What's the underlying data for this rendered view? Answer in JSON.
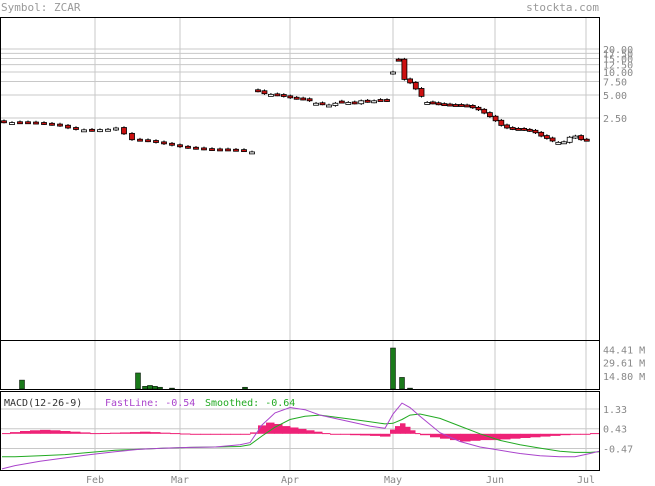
{
  "header": {
    "symbol": "Symbol: ZCAR",
    "brand": "stockta.com"
  },
  "chart_data": [
    {
      "type": "candlestick",
      "x_tick_labels": [
        "Feb",
        "Mar",
        "Apr",
        "May",
        "Jun",
        "Jul"
      ],
      "y_scale": "log",
      "y_tick_labels": [
        "20.00",
        "17.50",
        "15.00",
        "12.50",
        "10.00",
        "7.50",
        "5.00",
        "2.50"
      ],
      "y_tick_values": [
        20.0,
        17.5,
        15.0,
        12.5,
        10.0,
        7.5,
        5.0,
        2.5
      ],
      "grid": true,
      "series": [
        {
          "segment": "Jan-Mar",
          "close": [
            2.2,
            2.18,
            2.2,
            2.18,
            2.15,
            2.1,
            2.05,
            1.98,
            1.85,
            1.78,
            1.75,
            1.72,
            1.76,
            1.78,
            1.85,
            1.55,
            1.3,
            1.28,
            1.25,
            1.2,
            1.15,
            1.1,
            1.05,
            1.02,
            1.0,
            0.98,
            0.97,
            0.97,
            0.96,
            0.95,
            0.95,
            0.9
          ],
          "up": [
            false,
            true,
            false,
            false,
            false,
            false,
            false,
            false,
            false,
            false,
            true,
            false,
            true,
            true,
            true,
            false,
            false,
            false,
            false,
            false,
            false,
            false,
            false,
            false,
            false,
            false,
            false,
            false,
            false,
            false,
            false,
            true
          ]
        },
        {
          "segment": "Apr-May",
          "close": [
            5.6,
            5.2,
            5.1,
            5.0,
            4.8,
            4.6,
            4.5,
            4.4,
            4.2,
            3.9,
            3.8,
            3.7,
            3.9,
            4.1,
            4.0,
            3.9,
            4.2,
            4.1,
            4.2,
            4.3,
            4.2
          ],
          "up": [
            false,
            false,
            true,
            false,
            false,
            false,
            false,
            false,
            false,
            true,
            false,
            true,
            true,
            false,
            true,
            false,
            true,
            false,
            true,
            false,
            false
          ]
        },
        {
          "segment": "May-Jul",
          "close": [
            10.0,
            14.5,
            8.0,
            7.2,
            6.0,
            4.8,
            4.0,
            3.9,
            3.8,
            3.75,
            3.7,
            3.7,
            3.65,
            3.6,
            3.4,
            3.2,
            2.9,
            2.6,
            2.3,
            2.0,
            1.85,
            1.8,
            1.8,
            1.75,
            1.7,
            1.6,
            1.45,
            1.35,
            1.25,
            1.2,
            1.22,
            1.4,
            1.45,
            1.3,
            1.28
          ],
          "up": [
            true,
            false,
            false,
            false,
            false,
            false,
            true,
            false,
            false,
            false,
            false,
            false,
            false,
            false,
            false,
            false,
            false,
            false,
            false,
            false,
            false,
            false,
            false,
            false,
            false,
            false,
            false,
            false,
            false,
            true,
            true,
            true,
            true,
            false,
            false
          ]
        }
      ]
    },
    {
      "type": "bar",
      "name": "volume",
      "y_tick_labels": [
        "44.41 M",
        "29.61 M",
        "14.80 M"
      ],
      "y_tick_values": [
        44.41,
        29.61,
        14.8
      ],
      "ylim": [
        0,
        46
      ],
      "bars": [
        {
          "x": 22,
          "v": 10
        },
        {
          "x": 138,
          "v": 18
        },
        {
          "x": 145,
          "v": 3
        },
        {
          "x": 150,
          "v": 4
        },
        {
          "x": 155,
          "v": 3
        },
        {
          "x": 160,
          "v": 2
        },
        {
          "x": 172,
          "v": 1
        },
        {
          "x": 245,
          "v": 2
        },
        {
          "x": 393,
          "v": 46
        },
        {
          "x": 402,
          "v": 13
        },
        {
          "x": 410,
          "v": 1
        }
      ]
    },
    {
      "type": "line",
      "name": "MACD",
      "label": "MACD(12-26-9)",
      "fastline_label": "FastLine: -0.54",
      "smoothed_label": "Smoothed: -0.64",
      "y_tick_labels": [
        "1.33",
        "0.43",
        "-0.47"
      ],
      "y_tick_values": [
        1.33,
        0.43,
        -0.47
      ],
      "ylim": [
        -1.45,
        2.15
      ],
      "x": [
        2,
        15,
        40,
        65,
        90,
        115,
        140,
        165,
        190,
        215,
        240,
        250,
        262,
        275,
        290,
        305,
        320,
        345,
        370,
        385,
        393,
        402,
        410,
        420,
        440,
        460,
        480,
        500,
        520,
        540,
        560,
        575,
        590,
        599
      ],
      "fastline": [
        -1.4,
        -1.25,
        -1.05,
        -0.9,
        -0.75,
        -0.62,
        -0.5,
        -0.45,
        -0.42,
        -0.4,
        -0.3,
        -0.2,
        0.6,
        1.15,
        1.4,
        1.3,
        1.05,
        0.8,
        0.55,
        0.45,
        1.1,
        1.6,
        1.4,
        1.0,
        0.25,
        -0.15,
        -0.4,
        -0.55,
        -0.7,
        -0.8,
        -0.85,
        -0.85,
        -0.7,
        -0.6
      ],
      "smoothed": [
        -0.85,
        -0.85,
        -0.8,
        -0.75,
        -0.65,
        -0.55,
        -0.5,
        -0.45,
        -0.42,
        -0.4,
        -0.38,
        -0.3,
        0.1,
        0.5,
        0.85,
        1.0,
        1.05,
        0.9,
        0.75,
        0.65,
        0.68,
        0.85,
        1.05,
        1.1,
        0.9,
        0.55,
        0.2,
        -0.1,
        -0.3,
        -0.45,
        -0.6,
        -0.65,
        -0.65,
        -0.62
      ],
      "histogram_x": [
        2,
        10,
        20,
        30,
        40,
        50,
        60,
        70,
        80,
        90,
        100,
        110,
        120,
        130,
        140,
        150,
        160,
        170,
        180,
        190,
        200,
        210,
        220,
        230,
        240,
        250,
        258,
        266,
        274,
        282,
        290,
        298,
        306,
        314,
        322,
        330,
        340,
        350,
        360,
        370,
        380,
        390,
        395,
        400,
        405,
        410,
        415,
        420,
        430,
        440,
        450,
        460,
        470,
        480,
        490,
        500,
        510,
        520,
        530,
        540,
        550,
        560,
        570,
        580,
        590,
        599
      ],
      "histogram": [
        0.05,
        0.12,
        0.2,
        0.25,
        0.28,
        0.25,
        0.2,
        0.15,
        0.1,
        0.05,
        0.06,
        0.08,
        0.1,
        0.12,
        0.15,
        0.12,
        0.08,
        0.05,
        0.02,
        0.0,
        -0.02,
        -0.03,
        -0.03,
        -0.02,
        -0.01,
        0.1,
        0.6,
        0.8,
        0.7,
        0.55,
        0.45,
        0.35,
        0.25,
        0.15,
        0.05,
        0.0,
        -0.05,
        -0.1,
        -0.12,
        -0.15,
        -0.2,
        0.3,
        0.55,
        0.75,
        0.5,
        0.25,
        0.05,
        -0.1,
        -0.25,
        -0.35,
        -0.45,
        -0.55,
        -0.5,
        -0.45,
        -0.45,
        -0.4,
        -0.35,
        -0.3,
        -0.25,
        -0.2,
        -0.15,
        -0.1,
        -0.05,
        0.0,
        0.05,
        0.1
      ]
    }
  ],
  "colors": {
    "up_fill": "#ffffff",
    "down_fill": "#cc1111",
    "volume_bar": "#1a7a1a",
    "fastline": "#aa44cc",
    "smoothed": "#22aa22",
    "histogram": "#ee2277",
    "grid": "#c8c8c8"
  }
}
